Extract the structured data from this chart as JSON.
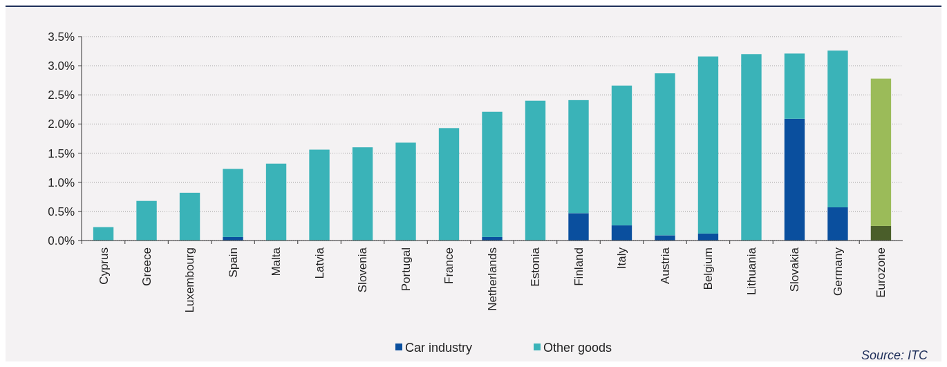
{
  "chart_data": {
    "type": "bar",
    "stacked": true,
    "categories": [
      "Cyprus",
      "Greece",
      "Luxembourg",
      "Spain",
      "Malta",
      "Latvia",
      "Slovenia",
      "Portugal",
      "France",
      "Netherlands",
      "Estonia",
      "Finland",
      "Italy",
      "Austria",
      "Belgium",
      "Lithuania",
      "Slovakia",
      "Germany",
      "Eurozone"
    ],
    "series": [
      {
        "name": "Car industry",
        "color": "#0a4f9e",
        "colors": [
          "#0a4f9e",
          "#0a4f9e",
          "#0a4f9e",
          "#0a4f9e",
          "#0a4f9e",
          "#0a4f9e",
          "#0a4f9e",
          "#0a4f9e",
          "#0a4f9e",
          "#0a4f9e",
          "#0a4f9e",
          "#0a4f9e",
          "#0a4f9e",
          "#0a4f9e",
          "#0a4f9e",
          "#0a4f9e",
          "#0a4f9e",
          "#0a4f9e",
          "#4a5e2a"
        ],
        "values": [
          0,
          0,
          0,
          0.06,
          0,
          0,
          0,
          0,
          0,
          0.06,
          0,
          0.47,
          0.26,
          0.09,
          0.12,
          0,
          2.09,
          0.57,
          0.25
        ]
      },
      {
        "name": "Other goods",
        "color": "#3ab3b8",
        "colors": [
          "#3ab3b8",
          "#3ab3b8",
          "#3ab3b8",
          "#3ab3b8",
          "#3ab3b8",
          "#3ab3b8",
          "#3ab3b8",
          "#3ab3b8",
          "#3ab3b8",
          "#3ab3b8",
          "#3ab3b8",
          "#3ab3b8",
          "#3ab3b8",
          "#3ab3b8",
          "#3ab3b8",
          "#3ab3b8",
          "#3ab3b8",
          "#3ab3b8",
          "#9bbb59"
        ],
        "values": [
          0.23,
          0.68,
          0.82,
          1.17,
          1.32,
          1.56,
          1.6,
          1.68,
          1.93,
          2.15,
          2.4,
          1.94,
          2.4,
          2.78,
          3.04,
          3.2,
          1.12,
          2.69,
          2.53
        ]
      }
    ],
    "ylim": [
      0,
      3.5
    ],
    "yticks": [
      {
        "value": 0,
        "label": "0.0%"
      },
      {
        "value": 0.5,
        "label": "0.5%"
      },
      {
        "value": 1,
        "label": "1.0%"
      },
      {
        "value": 1.5,
        "label": "1.5%"
      },
      {
        "value": 2,
        "label": "2.0%"
      },
      {
        "value": 2.5,
        "label": "2.5%"
      },
      {
        "value": 3,
        "label": "3.0%"
      },
      {
        "value": 3.5,
        "label": "3.5%"
      }
    ],
    "grid": "y",
    "legend": "bottom",
    "annotations": [
      "Source: ITC"
    ]
  }
}
